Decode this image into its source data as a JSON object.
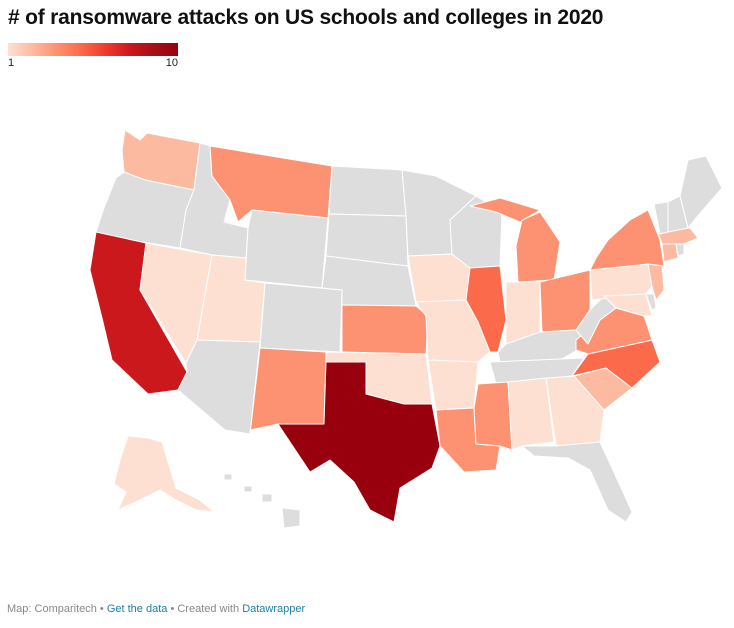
{
  "title": "# of ransomware attacks on US schools and colleges in 2020",
  "legend": {
    "min": "1",
    "max": "10"
  },
  "footer": {
    "source": "Map: Comparitech",
    "separator": " • ",
    "get_data": "Get the data",
    "created_with": "Created with",
    "tool": "Datawrapper"
  },
  "colors": {
    "no_data": "#dddddd",
    "border": "#ffffff",
    "scale": [
      "#fee0d2",
      "#fcbba1",
      "#fc9272",
      "#fb6a4a",
      "#ef3b2c",
      "#cb181d",
      "#a50f15",
      "#99000d"
    ]
  },
  "chart_data": {
    "type": "choropleth",
    "scale": {
      "min": 1,
      "max": 10
    },
    "states_with_attacks": [
      {
        "state": "TX",
        "level": 10
      },
      {
        "state": "CA",
        "level": 8
      },
      {
        "state": "IL",
        "level": 5
      },
      {
        "state": "NC",
        "level": 5
      },
      {
        "state": "NY",
        "level": 4
      },
      {
        "state": "MS",
        "level": 4
      },
      {
        "state": "LA",
        "level": 4
      },
      {
        "state": "MT",
        "level": 3
      },
      {
        "state": "MI",
        "level": 3
      },
      {
        "state": "VA",
        "level": 3
      },
      {
        "state": "OH",
        "level": 3
      },
      {
        "state": "KS",
        "level": 3
      },
      {
        "state": "NM",
        "level": 3
      },
      {
        "state": "WA",
        "level": 2
      },
      {
        "state": "SC",
        "level": 2
      },
      {
        "state": "NJ",
        "level": 2
      },
      {
        "state": "MA",
        "level": 2
      },
      {
        "state": "CT",
        "level": 2
      },
      {
        "state": "NV",
        "level": 1
      },
      {
        "state": "UT",
        "level": 1
      },
      {
        "state": "IA",
        "level": 1
      },
      {
        "state": "MO",
        "level": 1
      },
      {
        "state": "AR",
        "level": 1
      },
      {
        "state": "OK",
        "level": 1
      },
      {
        "state": "IN",
        "level": 1
      },
      {
        "state": "PA",
        "level": 1
      },
      {
        "state": "AL",
        "level": 1
      },
      {
        "state": "GA",
        "level": 1
      },
      {
        "state": "MD",
        "level": 1
      },
      {
        "state": "AK",
        "level": 1
      }
    ],
    "states_no_data": [
      "OR",
      "ID",
      "WY",
      "ND",
      "SD",
      "NE",
      "MN",
      "WI",
      "CO",
      "AZ",
      "KY",
      "TN",
      "WV",
      "FL",
      "ME",
      "VT",
      "NH",
      "DE",
      "RI",
      "HI"
    ]
  }
}
